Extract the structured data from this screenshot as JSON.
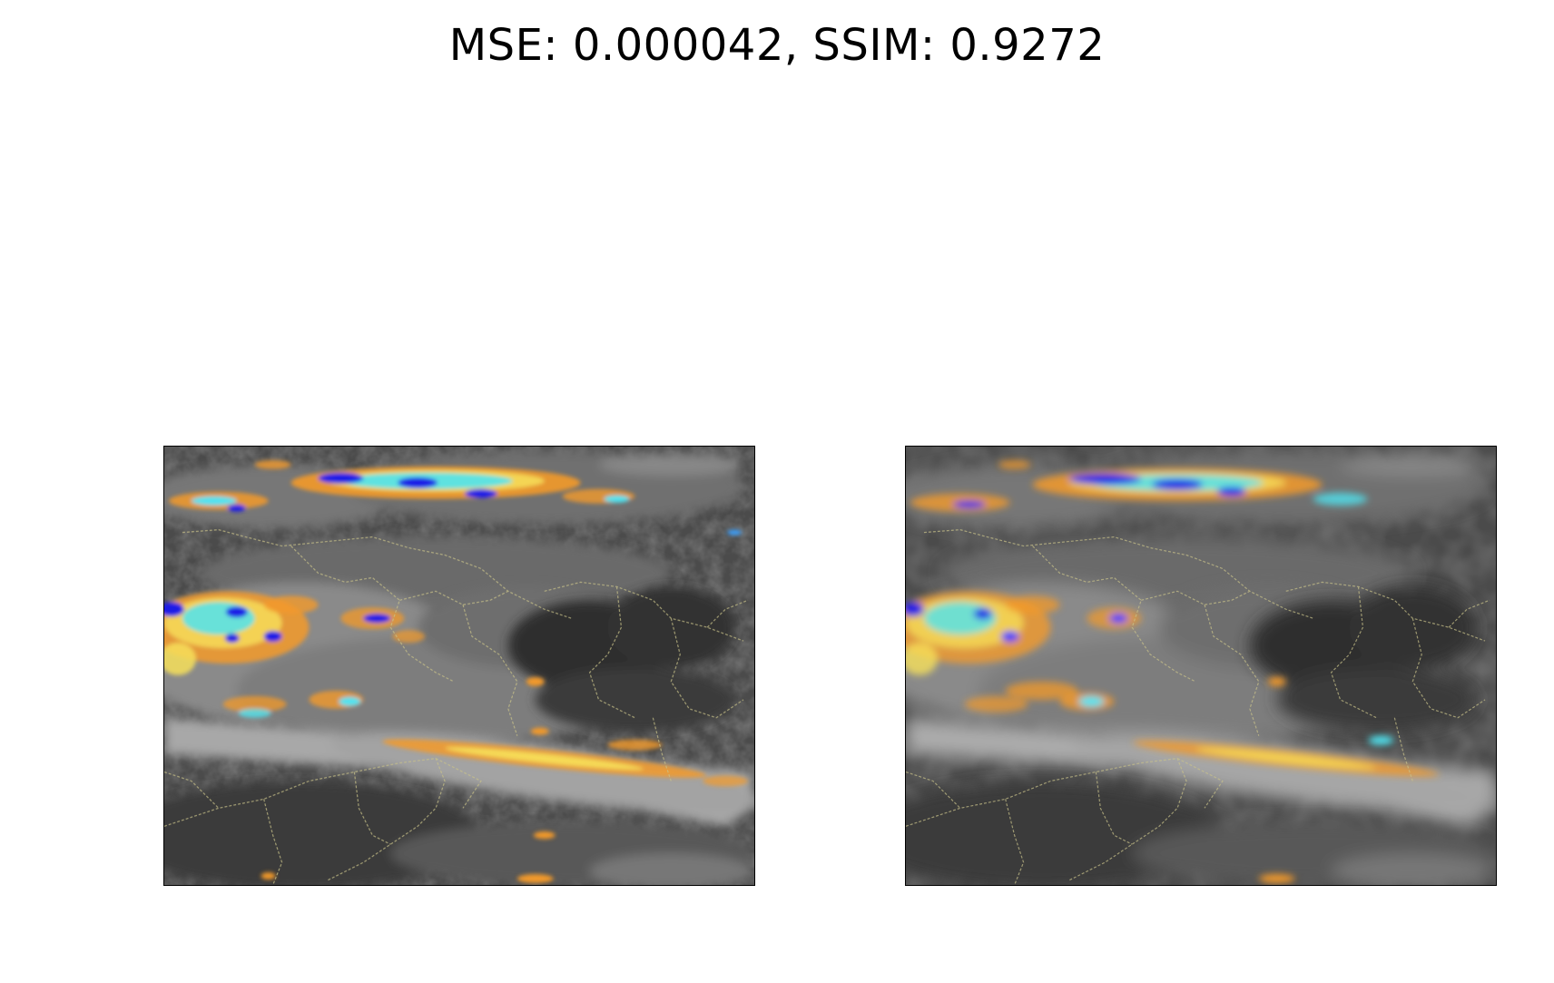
{
  "figure": {
    "title": "MSE: 0.000042, SSIM: 0.9272"
  },
  "panels": [
    {
      "id": "left",
      "content": "satellite infrared cloud image with color-enhanced cold cloud tops and country borders"
    },
    {
      "id": "right",
      "content": "smoothed reconstruction of the same satellite infrared cloud image"
    }
  ],
  "colors": {
    "background": "#ffffff",
    "dark_land": "#3a3a3a",
    "cloud_gray": "#9a9a9a",
    "enhance_orange": "#f39a2a",
    "enhance_yellow": "#f7e15a",
    "enhance_cyan": "#4fe3f0",
    "enhance_blue": "#1a1ae6",
    "border_line": "#c9c28a"
  }
}
